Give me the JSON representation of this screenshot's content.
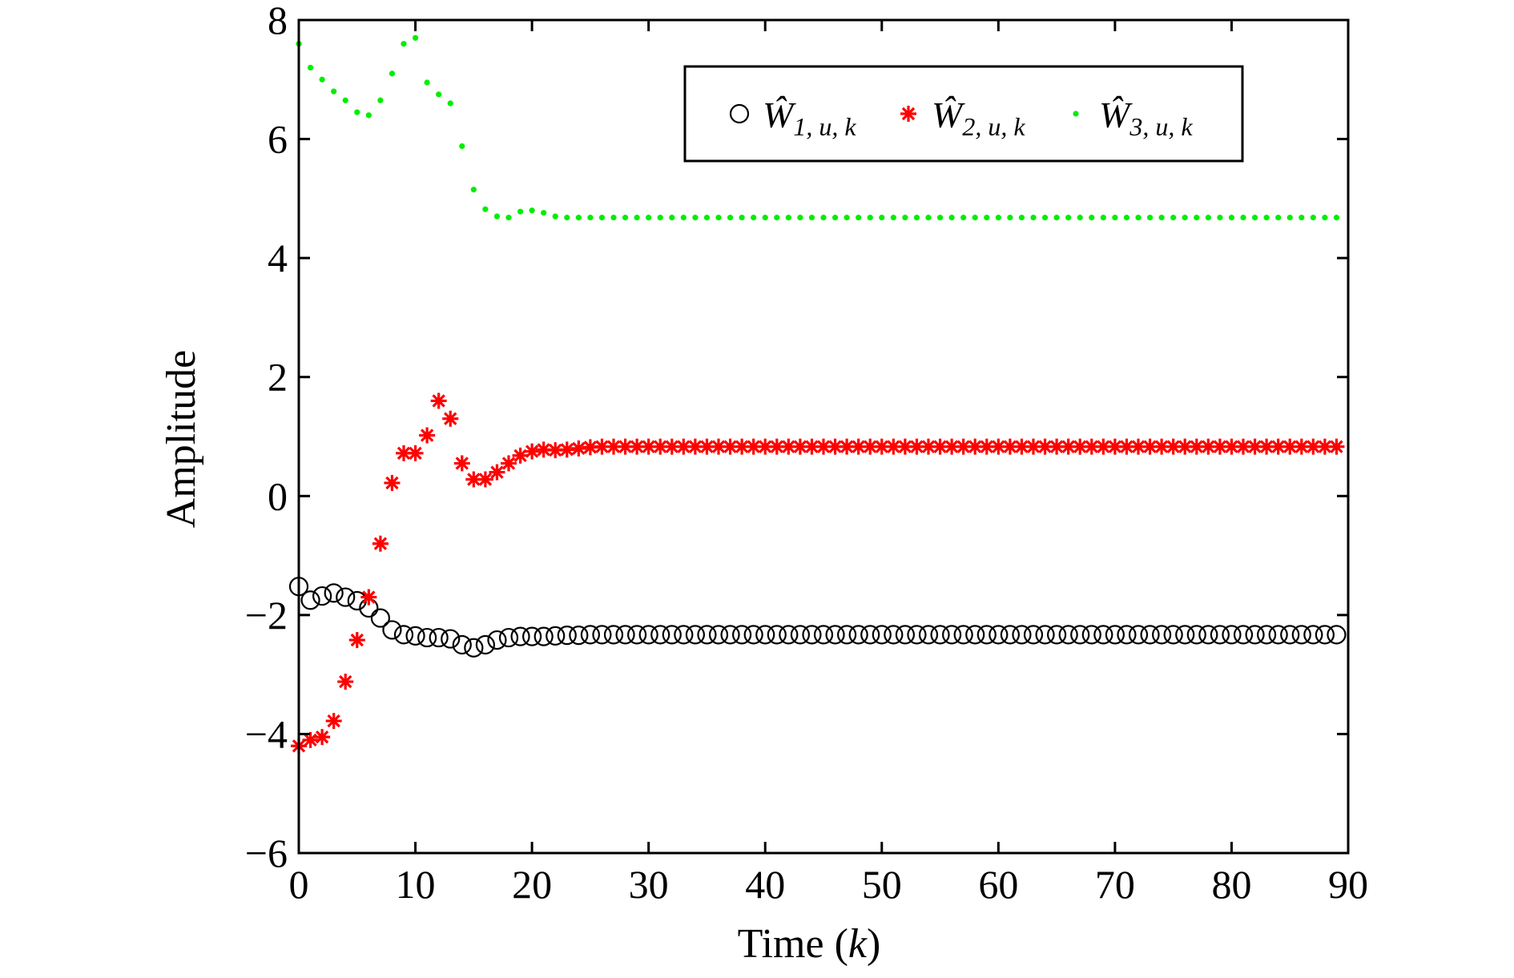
{
  "chart_data": {
    "type": "scatter",
    "xlabel_main": "Time (",
    "xlabel_var": "k",
    "xlabel_close": ")",
    "ylabel": "Amplitude",
    "xlim": [
      0,
      90
    ],
    "ylim": [
      -6,
      8
    ],
    "xticks": [
      0,
      10,
      20,
      30,
      40,
      50,
      60,
      70,
      80,
      90
    ],
    "yticks": [
      -6,
      -4,
      -2,
      0,
      2,
      4,
      6,
      8
    ],
    "ytick_labels": [
      "−6",
      "−4",
      "−2",
      "0",
      "2",
      "4",
      "6",
      "8"
    ],
    "grid": false,
    "legend_position": "top-right",
    "series": [
      {
        "key": "w1",
        "name": "Ŵ1,u,k",
        "legend_main": "Ŵ",
        "legend_sub": "1, u, k",
        "marker": "circle",
        "color": "#000000",
        "x": [
          0,
          1,
          2,
          3,
          4,
          5,
          6,
          7,
          8,
          9,
          10,
          11,
          12,
          13,
          14,
          15,
          16,
          17,
          18,
          19,
          20,
          21,
          22,
          23,
          24,
          25,
          26,
          27,
          28,
          29,
          30,
          31,
          32,
          33,
          34,
          35,
          36,
          37,
          38,
          39,
          40,
          41,
          42,
          43,
          44,
          45,
          46,
          47,
          48,
          49,
          50,
          51,
          52,
          53,
          54,
          55,
          56,
          57,
          58,
          59,
          60,
          61,
          62,
          63,
          64,
          65,
          66,
          67,
          68,
          69,
          70,
          71,
          72,
          73,
          74,
          75,
          76,
          77,
          78,
          79,
          80,
          81,
          82,
          83,
          84,
          85,
          86,
          87,
          88,
          89
        ],
        "y": [
          -1.52,
          -1.75,
          -1.68,
          -1.63,
          -1.7,
          -1.76,
          -1.88,
          -2.05,
          -2.25,
          -2.33,
          -2.35,
          -2.38,
          -2.38,
          -2.4,
          -2.5,
          -2.55,
          -2.5,
          -2.42,
          -2.38,
          -2.36,
          -2.36,
          -2.36,
          -2.35,
          -2.34,
          -2.34,
          -2.33,
          -2.33,
          -2.33,
          -2.33,
          -2.33,
          -2.33,
          -2.33,
          -2.33,
          -2.33,
          -2.33,
          -2.33,
          -2.33,
          -2.33,
          -2.33,
          -2.33,
          -2.33,
          -2.33,
          -2.33,
          -2.33,
          -2.33,
          -2.33,
          -2.33,
          -2.33,
          -2.33,
          -2.33,
          -2.33,
          -2.33,
          -2.33,
          -2.33,
          -2.33,
          -2.33,
          -2.33,
          -2.33,
          -2.33,
          -2.33,
          -2.33,
          -2.33,
          -2.33,
          -2.33,
          -2.33,
          -2.33,
          -2.33,
          -2.33,
          -2.33,
          -2.33,
          -2.33,
          -2.33,
          -2.33,
          -2.33,
          -2.33,
          -2.33,
          -2.33,
          -2.33,
          -2.33,
          -2.33,
          -2.33,
          -2.33,
          -2.33,
          -2.33,
          -2.33,
          -2.33,
          -2.33,
          -2.33,
          -2.33,
          -2.33
        ]
      },
      {
        "key": "w2",
        "name": "Ŵ2,u,k",
        "legend_main": "Ŵ",
        "legend_sub": "2, u, k",
        "marker": "asterisk",
        "color": "#ff0000",
        "x": [
          0,
          1,
          2,
          3,
          4,
          5,
          6,
          7,
          8,
          9,
          10,
          11,
          12,
          13,
          14,
          15,
          16,
          17,
          18,
          19,
          20,
          21,
          22,
          23,
          24,
          25,
          26,
          27,
          28,
          29,
          30,
          31,
          32,
          33,
          34,
          35,
          36,
          37,
          38,
          39,
          40,
          41,
          42,
          43,
          44,
          45,
          46,
          47,
          48,
          49,
          50,
          51,
          52,
          53,
          54,
          55,
          56,
          57,
          58,
          59,
          60,
          61,
          62,
          63,
          64,
          65,
          66,
          67,
          68,
          69,
          70,
          71,
          72,
          73,
          74,
          75,
          76,
          77,
          78,
          79,
          80,
          81,
          82,
          83,
          84,
          85,
          86,
          87,
          88,
          89
        ],
        "y": [
          -4.2,
          -4.1,
          -4.05,
          -3.78,
          -3.12,
          -2.42,
          -1.7,
          -0.8,
          0.22,
          0.72,
          0.72,
          1.02,
          1.6,
          1.3,
          0.55,
          0.28,
          0.28,
          0.4,
          0.55,
          0.68,
          0.75,
          0.78,
          0.77,
          0.78,
          0.8,
          0.82,
          0.83,
          0.83,
          0.83,
          0.83,
          0.83,
          0.83,
          0.83,
          0.83,
          0.83,
          0.83,
          0.83,
          0.83,
          0.83,
          0.83,
          0.83,
          0.83,
          0.83,
          0.83,
          0.83,
          0.83,
          0.83,
          0.83,
          0.83,
          0.83,
          0.83,
          0.83,
          0.83,
          0.83,
          0.83,
          0.83,
          0.83,
          0.83,
          0.83,
          0.83,
          0.83,
          0.83,
          0.83,
          0.83,
          0.83,
          0.83,
          0.83,
          0.83,
          0.83,
          0.83,
          0.83,
          0.83,
          0.83,
          0.83,
          0.83,
          0.83,
          0.83,
          0.83,
          0.83,
          0.83,
          0.83,
          0.83,
          0.83,
          0.83,
          0.83,
          0.83,
          0.83,
          0.83,
          0.83,
          0.83
        ]
      },
      {
        "key": "w3",
        "name": "Ŵ3,u,k",
        "legend_main": "Ŵ",
        "legend_sub": "3, u, k",
        "marker": "dot",
        "color": "#00ee00",
        "x": [
          0,
          1,
          2,
          3,
          4,
          5,
          6,
          7,
          8,
          9,
          10,
          11,
          12,
          13,
          14,
          15,
          16,
          17,
          18,
          19,
          20,
          21,
          22,
          23,
          24,
          25,
          26,
          27,
          28,
          29,
          30,
          31,
          32,
          33,
          34,
          35,
          36,
          37,
          38,
          39,
          40,
          41,
          42,
          43,
          44,
          45,
          46,
          47,
          48,
          49,
          50,
          51,
          52,
          53,
          54,
          55,
          56,
          57,
          58,
          59,
          60,
          61,
          62,
          63,
          64,
          65,
          66,
          67,
          68,
          69,
          70,
          71,
          72,
          73,
          74,
          75,
          76,
          77,
          78,
          79,
          80,
          81,
          82,
          83,
          84,
          85,
          86,
          87,
          88,
          89
        ],
        "y": [
          7.6,
          7.2,
          7.0,
          6.8,
          6.65,
          6.45,
          6.4,
          6.65,
          7.1,
          7.6,
          7.7,
          6.95,
          6.75,
          6.6,
          5.88,
          5.15,
          4.82,
          4.7,
          4.68,
          4.78,
          4.8,
          4.76,
          4.7,
          4.68,
          4.68,
          4.68,
          4.68,
          4.68,
          4.68,
          4.68,
          4.68,
          4.68,
          4.68,
          4.68,
          4.68,
          4.68,
          4.68,
          4.68,
          4.68,
          4.68,
          4.68,
          4.68,
          4.68,
          4.68,
          4.68,
          4.68,
          4.68,
          4.68,
          4.68,
          4.68,
          4.68,
          4.68,
          4.68,
          4.68,
          4.68,
          4.68,
          4.68,
          4.68,
          4.68,
          4.68,
          4.68,
          4.68,
          4.68,
          4.68,
          4.68,
          4.68,
          4.68,
          4.68,
          4.68,
          4.68,
          4.68,
          4.68,
          4.68,
          4.68,
          4.68,
          4.68,
          4.68,
          4.68,
          4.68,
          4.68,
          4.68,
          4.68,
          4.68,
          4.68,
          4.68,
          4.68,
          4.68,
          4.68,
          4.68,
          4.68
        ]
      }
    ]
  }
}
